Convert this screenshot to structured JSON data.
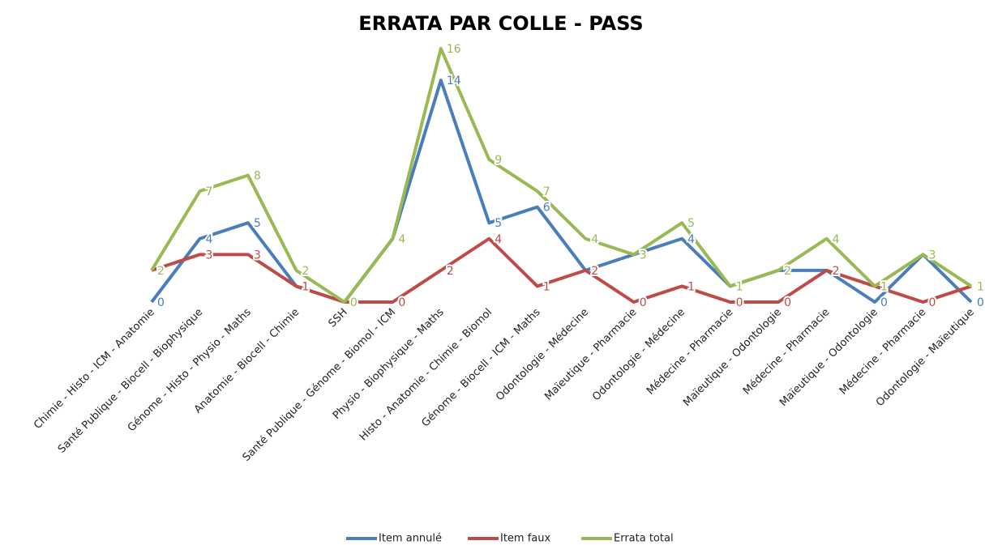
{
  "chart_data": {
    "type": "line",
    "title": "ERRATA PAR COLLE - PASS",
    "categories": [
      "Chimie - Histo - ICM - Anatomie",
      "Santé Publique - Biocell - Biophysique",
      "Génome - Histo - Physio - Maths",
      "Anatomie - Biocell - Chimie",
      "SSH",
      "Santé Publique - Génome - Biomol - ICM",
      "Physio - Biophysique - Maths",
      "Histo - Anatomie - Chimie - Biomol",
      "Génome - Biocell - ICM - Maths",
      "Odontologie - Médecine",
      "Maïeutique - Pharmacie",
      "Odontologie - Médecine",
      "Médecine - Pharmacie",
      "Maïeutique - Odontologie",
      "Médecine - Pharmacie",
      "Maïeutique - Odontologie",
      "Médecine - Pharmacie",
      "Odontologie - Maïeutique"
    ],
    "series": [
      {
        "name": "Item annulé",
        "color": "#4a7ebb",
        "values": [
          0,
          4,
          5,
          1,
          0,
          4,
          14,
          5,
          6,
          2,
          3,
          4,
          1,
          2,
          2,
          0,
          3,
          0
        ]
      },
      {
        "name": "Item faux",
        "color": "#be4b48",
        "values": [
          2,
          3,
          3,
          1,
          0,
          0,
          2,
          4,
          1,
          2,
          0,
          1,
          0,
          0,
          2,
          1,
          0,
          1
        ]
      },
      {
        "name": "Errata total",
        "color": "#98b954",
        "values": [
          2,
          7,
          8,
          2,
          0,
          4,
          16,
          9,
          7,
          4,
          3,
          5,
          1,
          2,
          4,
          1,
          3,
          1
        ]
      }
    ],
    "ylim": [
      0,
      16
    ],
    "legend": "bottom"
  }
}
